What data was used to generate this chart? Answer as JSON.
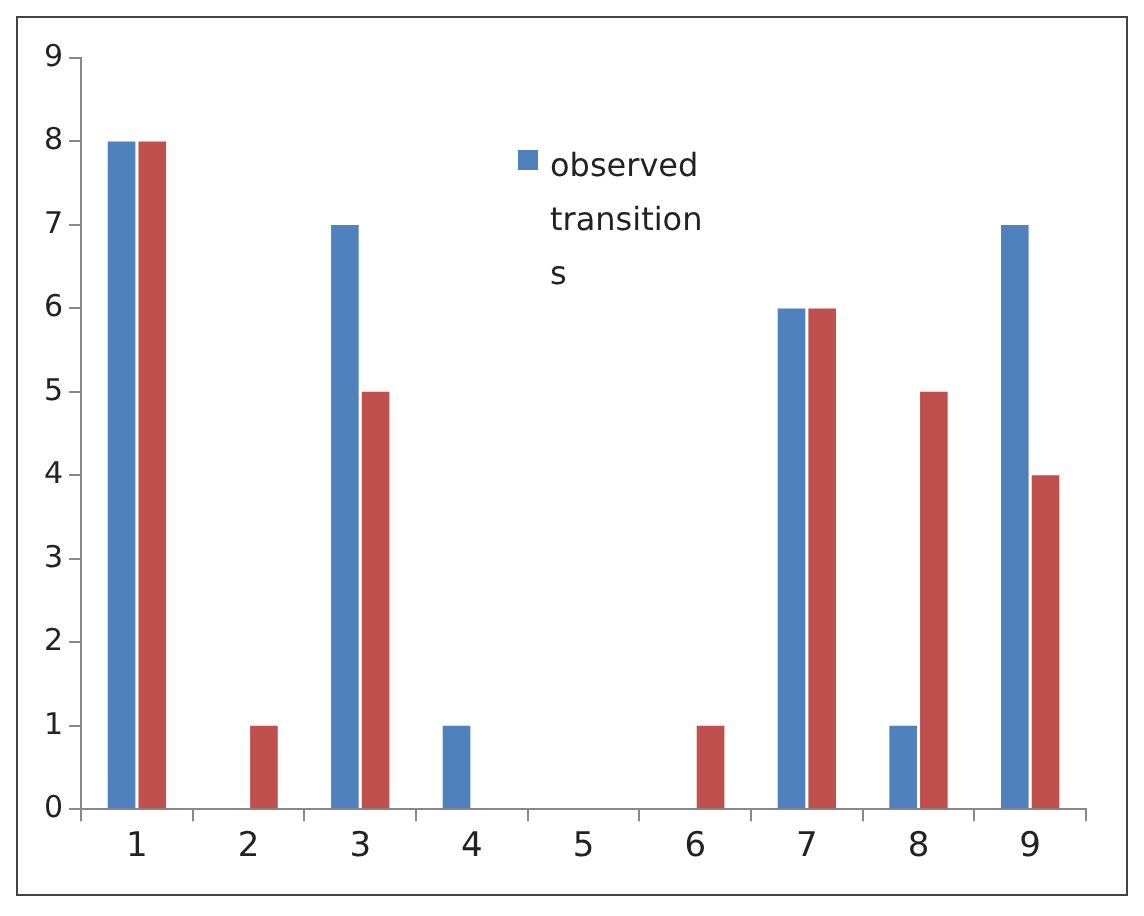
{
  "chart_data": {
    "type": "bar",
    "categories": [
      "1",
      "2",
      "3",
      "4",
      "5",
      "6",
      "7",
      "8",
      "9"
    ],
    "series": [
      {
        "name": "observed transitions",
        "color": "#4f81bd",
        "values": [
          8,
          0,
          7,
          1,
          0,
          0,
          6,
          1,
          7
        ]
      },
      {
        "color": "#c0504d",
        "values": [
          8,
          1,
          5,
          0,
          0,
          1,
          6,
          5,
          4
        ]
      }
    ],
    "ylim": [
      0,
      9
    ],
    "yticks": [
      0,
      1,
      2,
      3,
      4,
      5,
      6,
      7,
      8,
      9
    ],
    "grid": false,
    "legend": "top"
  }
}
